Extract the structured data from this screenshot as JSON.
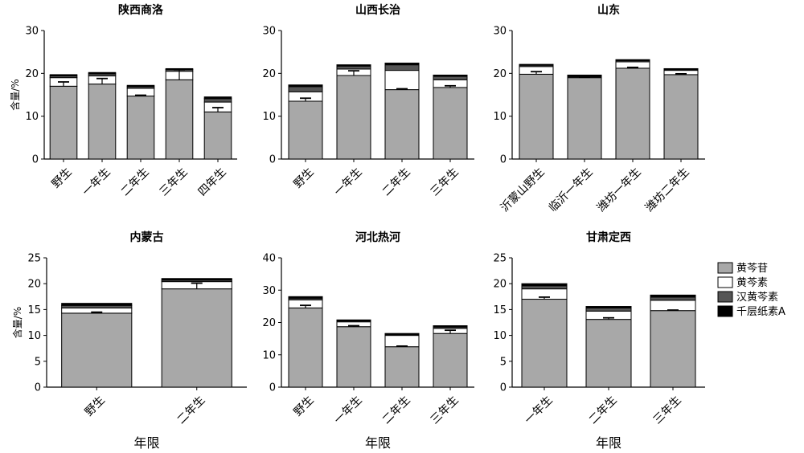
{
  "legend": {
    "items": [
      {
        "label": "黄芩苷",
        "color": "#a8a8a8"
      },
      {
        "label": "黄芩素",
        "color": "#ffffff"
      },
      {
        "label": "汉黄芩素",
        "color": "#555555"
      },
      {
        "label": "千层纸素A",
        "color": "#000000"
      }
    ]
  },
  "chart_data": [
    {
      "type": "bar",
      "stacked": true,
      "title": "陕西商洛",
      "ylabel": "含量/%",
      "xlabel": "",
      "ylim": [
        0,
        30
      ],
      "yticks": [
        0,
        10,
        20,
        30
      ],
      "categories": [
        "野生",
        "一年生",
        "二年生",
        "三年生",
        "四年生"
      ],
      "series": [
        {
          "name": "黄芩苷",
          "values": [
            17.0,
            17.5,
            14.7,
            18.5,
            11.0
          ]
        },
        {
          "name": "黄芩素",
          "values": [
            2.0,
            1.9,
            1.8,
            2.0,
            2.3
          ]
        },
        {
          "name": "汉黄芩素",
          "values": [
            0.4,
            0.5,
            0.4,
            0.4,
            0.8
          ]
        },
        {
          "name": "千层纸素A",
          "values": [
            0.3,
            0.3,
            0.3,
            0.2,
            0.4
          ]
        }
      ],
      "error_bars": [
        [
          17.0,
          18.0
        ],
        [
          17.5,
          18.8
        ],
        [
          14.7,
          14.9
        ],
        [
          18.5,
          20.9
        ],
        [
          11.0,
          12.0
        ]
      ]
    },
    {
      "type": "bar",
      "stacked": true,
      "title": "山西长治",
      "ylabel": "",
      "xlabel": "",
      "ylim": [
        0,
        30
      ],
      "yticks": [
        0,
        10,
        20,
        30
      ],
      "categories": [
        "野生",
        "一年生",
        "二年生",
        "三年生"
      ],
      "series": [
        {
          "name": "黄芩苷",
          "values": [
            13.5,
            19.5,
            16.2,
            16.7
          ]
        },
        {
          "name": "黄芩素",
          "values": [
            2.2,
            1.5,
            4.5,
            1.8
          ]
        },
        {
          "name": "汉黄芩素",
          "values": [
            1.2,
            0.7,
            1.3,
            0.8
          ]
        },
        {
          "name": "千层纸素A",
          "values": [
            0.4,
            0.3,
            0.4,
            0.3
          ]
        }
      ],
      "error_bars": [
        [
          13.5,
          14.2
        ],
        [
          19.5,
          20.6
        ],
        [
          16.2,
          16.4
        ],
        [
          16.7,
          17.1
        ]
      ]
    },
    {
      "type": "bar",
      "stacked": true,
      "title": "山东",
      "ylabel": "",
      "xlabel": "",
      "ylim": [
        0,
        30
      ],
      "yticks": [
        0,
        10,
        20,
        30
      ],
      "categories": [
        "沂蒙山野生",
        "临沂一年生",
        "潍坊一年生",
        "潍坊二年生"
      ],
      "series": [
        {
          "name": "黄芩苷",
          "values": [
            19.8,
            19.0,
            21.2,
            19.7
          ]
        },
        {
          "name": "黄芩素",
          "values": [
            1.8,
            0.2,
            1.5,
            1.0
          ]
        },
        {
          "name": "汉黄芩素",
          "values": [
            0.3,
            0.2,
            0.3,
            0.2
          ]
        },
        {
          "name": "千层纸素A",
          "values": [
            0.2,
            0.2,
            0.2,
            0.2
          ]
        }
      ],
      "error_bars": [
        [
          19.8,
          20.4
        ],
        [
          19.0,
          19.1
        ],
        [
          21.2,
          21.4
        ],
        [
          19.7,
          19.9
        ]
      ]
    },
    {
      "type": "bar",
      "stacked": true,
      "title": "内蒙古",
      "ylabel": "含量/%",
      "xlabel": "年限",
      "ylim": [
        0,
        25
      ],
      "yticks": [
        0,
        5,
        10,
        15,
        20,
        25
      ],
      "categories": [
        "野生",
        "二年生"
      ],
      "series": [
        {
          "name": "黄芩苷",
          "values": [
            14.3,
            19.0
          ]
        },
        {
          "name": "黄芩素",
          "values": [
            1.0,
            1.4
          ]
        },
        {
          "name": "汉黄芩素",
          "values": [
            0.5,
            0.3
          ]
        },
        {
          "name": "千层纸素A",
          "values": [
            0.4,
            0.3
          ]
        }
      ],
      "error_bars": [
        [
          14.3,
          14.5
        ],
        [
          19.0,
          20.1
        ]
      ]
    },
    {
      "type": "bar",
      "stacked": true,
      "title": "河北热河",
      "ylabel": "",
      "xlabel": "年限",
      "ylim": [
        0,
        40
      ],
      "yticks": [
        0,
        10,
        20,
        30,
        40
      ],
      "categories": [
        "野生",
        "一年生",
        "二年生",
        "三年生"
      ],
      "series": [
        {
          "name": "黄芩苷",
          "values": [
            24.5,
            18.7,
            12.5,
            16.6
          ]
        },
        {
          "name": "黄芩素",
          "values": [
            2.5,
            1.5,
            3.5,
            1.6
          ]
        },
        {
          "name": "汉黄芩素",
          "values": [
            0.5,
            0.3,
            0.3,
            0.4
          ]
        },
        {
          "name": "千层纸素A",
          "values": [
            0.5,
            0.3,
            0.3,
            0.4
          ]
        }
      ],
      "error_bars": [
        [
          24.5,
          25.3
        ],
        [
          18.7,
          19.0
        ],
        [
          12.5,
          12.7
        ],
        [
          16.6,
          17.6
        ]
      ]
    },
    {
      "type": "bar",
      "stacked": true,
      "title": "甘肃定西",
      "ylabel": "",
      "xlabel": "年限",
      "ylim": [
        0,
        25
      ],
      "yticks": [
        0,
        5,
        10,
        15,
        20,
        25
      ],
      "categories": [
        "一年生",
        "二年生",
        "三年生"
      ],
      "series": [
        {
          "name": "黄芩苷",
          "values": [
            17.0,
            13.1,
            14.8
          ]
        },
        {
          "name": "黄芩素",
          "values": [
            2.0,
            1.6,
            2.0
          ]
        },
        {
          "name": "汉黄芩素",
          "values": [
            0.6,
            0.6,
            0.6
          ]
        },
        {
          "name": "千层纸素A",
          "values": [
            0.4,
            0.3,
            0.4
          ]
        }
      ],
      "error_bars": [
        [
          17.0,
          17.4
        ],
        [
          13.1,
          13.4
        ],
        [
          14.8,
          14.9
        ]
      ]
    }
  ]
}
